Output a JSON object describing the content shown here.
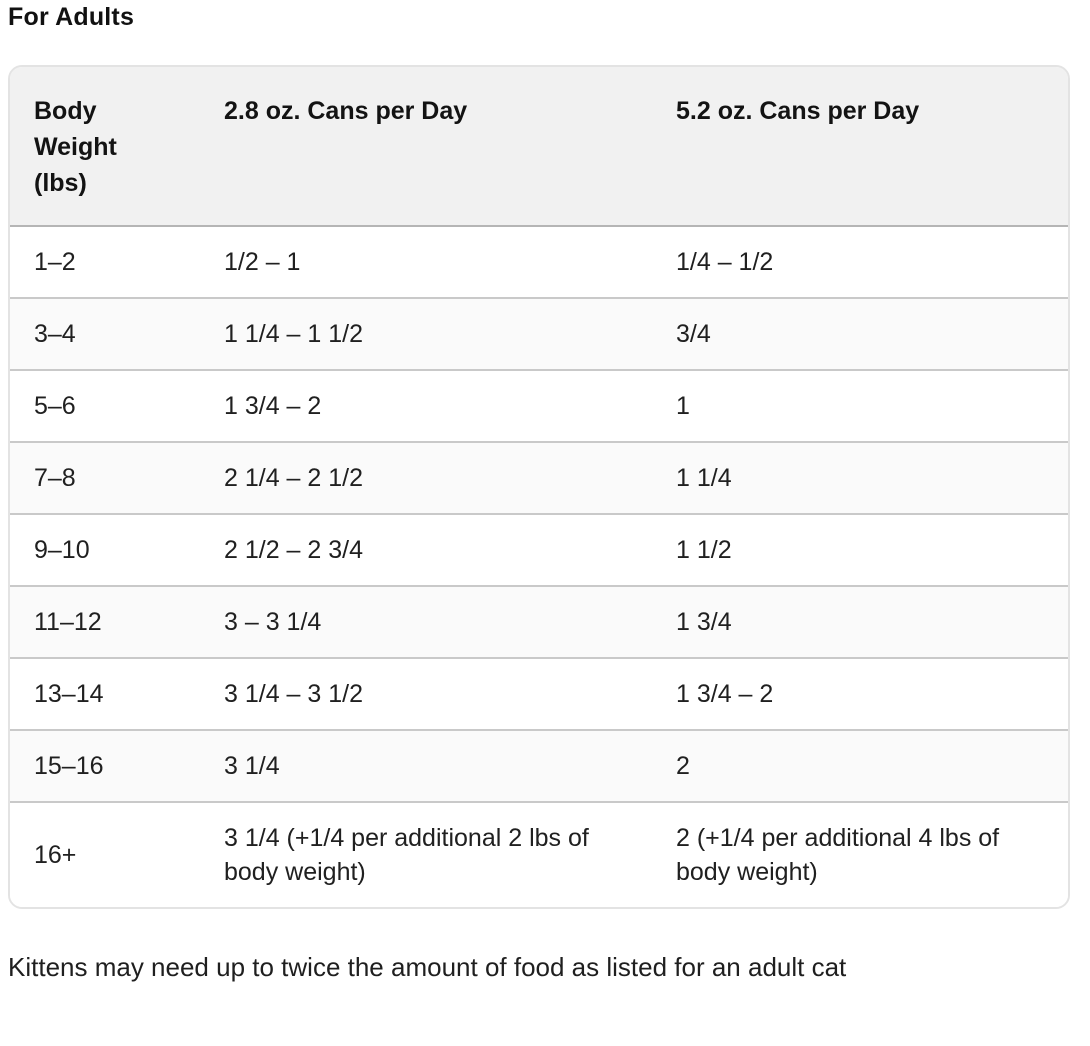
{
  "page": {
    "title": "For Adults",
    "footnote": "Kittens may need up to twice the amount of food as listed for an adult cat"
  },
  "table": {
    "columns": [
      "Body Weight (lbs)",
      "2.8 oz. Cans per Day",
      "5.2 oz. Cans per Day"
    ],
    "cell_names": [
      "body-weight-cell",
      "cans-2-8oz-cell",
      "cans-5-2oz-cell"
    ],
    "rows": [
      [
        "1–2",
        "1/2 – 1",
        "1/4 – 1/2"
      ],
      [
        "3–4",
        "1 1/4 – 1 1/2",
        "3/4"
      ],
      [
        "5–6",
        "1 3/4 – 2",
        "1"
      ],
      [
        "7–8",
        "2 1/4 – 2 1/2",
        "1 1/4"
      ],
      [
        "9–10",
        "2 1/2 – 2 3/4",
        "1 1/2"
      ],
      [
        "11–12",
        "3 – 3 1/4",
        "1 3/4"
      ],
      [
        "13–14",
        "3 1/4 – 3 1/2",
        "1 3/4 – 2"
      ],
      [
        "15–16",
        "3 1/4",
        "2"
      ],
      [
        "16+",
        "3 1/4 (+1/4 per additional 2 lbs of body weight)",
        "2 (+1/4 per additional 4 lbs of body weight)"
      ]
    ]
  },
  "colors": {
    "header_bg": "#f1f1f1",
    "stripe_bg": "#fafafa",
    "row_border": "#c9c9c9",
    "header_border": "#b5b5b5",
    "outer_border": "#e3e3e3",
    "text_color": "#1c1c1c"
  }
}
